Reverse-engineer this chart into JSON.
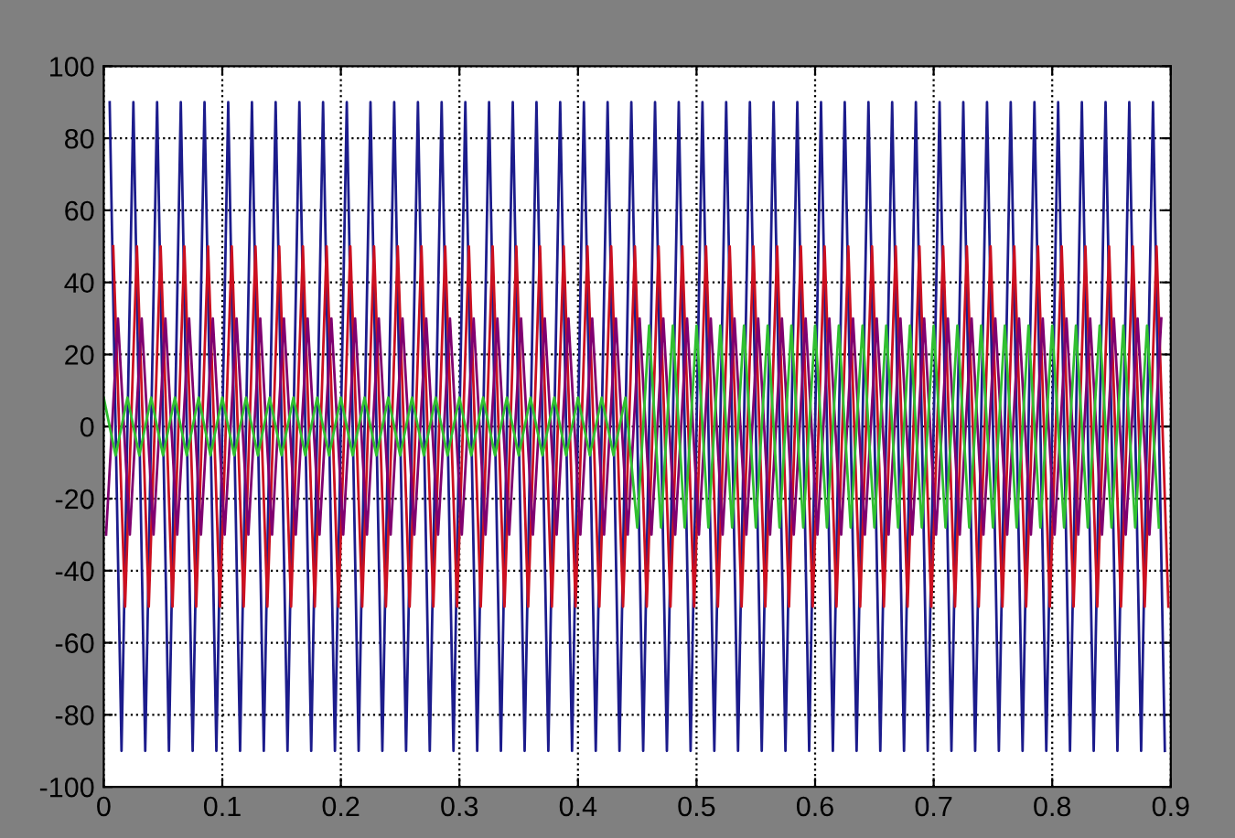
{
  "chart_data": {
    "type": "line",
    "xlim": [
      0,
      0.9
    ],
    "ylim": [
      -100,
      100
    ],
    "xticks": [
      {
        "value": 0,
        "label": "0"
      },
      0.1,
      0.2,
      0.3,
      0.4,
      0.5,
      0.6,
      0.7,
      0.8,
      0.9
    ],
    "yticks": [
      -100,
      -80,
      -60,
      -40,
      -20,
      0,
      20,
      40,
      60,
      80,
      100
    ],
    "grid": true,
    "marker": "none",
    "line_style": "solid",
    "series": [
      {
        "color": "#1c1c8c",
        "x": [
          0.005,
          0.015,
          0.025,
          0.035,
          0.045,
          0.055,
          0.065,
          0.075,
          0.085,
          0.095,
          0.105,
          0.115,
          0.125,
          0.135,
          0.145,
          0.155,
          0.165,
          0.175,
          0.185,
          0.195,
          0.205,
          0.215,
          0.225,
          0.235,
          0.245,
          0.255,
          0.265,
          0.275,
          0.285,
          0.295,
          0.305,
          0.315,
          0.325,
          0.335,
          0.345,
          0.355,
          0.365,
          0.375,
          0.385,
          0.395,
          0.405,
          0.415,
          0.425,
          0.435,
          0.445,
          0.455,
          0.465,
          0.475,
          0.485,
          0.495,
          0.505,
          0.515,
          0.525,
          0.535,
          0.545,
          0.555,
          0.565,
          0.575,
          0.585,
          0.595,
          0.605,
          0.615,
          0.625,
          0.635,
          0.645,
          0.655,
          0.665,
          0.675,
          0.685,
          0.695,
          0.705,
          0.715,
          0.725,
          0.735,
          0.745,
          0.755,
          0.765,
          0.775,
          0.785,
          0.795,
          0.805,
          0.815,
          0.825,
          0.835,
          0.845,
          0.855,
          0.865,
          0.875,
          0.885,
          0.895
        ],
        "values": [
          90,
          -90,
          90,
          -90,
          90,
          -90,
          90,
          -90,
          90,
          -90,
          90,
          -90,
          90,
          -90,
          90,
          -90,
          90,
          -90,
          90,
          -90,
          90,
          -90,
          90,
          -90,
          90,
          -90,
          90,
          -90,
          90,
          -90,
          90,
          -90,
          90,
          -90,
          90,
          -90,
          90,
          -90,
          90,
          -90,
          90,
          -90,
          90,
          -90,
          90,
          -90,
          90,
          -90,
          90,
          -90,
          90,
          -90,
          90,
          -90,
          90,
          -90,
          90,
          -90,
          90,
          -90,
          90,
          -90,
          90,
          -90,
          90,
          -90,
          90,
          -90,
          90,
          -90,
          90,
          -90,
          90,
          -90,
          90,
          -90,
          90,
          -90,
          90,
          -90,
          90,
          -90,
          90,
          -90,
          90,
          -90,
          90,
          -90,
          90,
          -90
        ]
      },
      {
        "color": "#cc1020",
        "x": [
          0.008,
          0.018,
          0.028,
          0.038,
          0.048,
          0.058,
          0.068,
          0.078,
          0.088,
          0.098,
          0.108,
          0.118,
          0.128,
          0.138,
          0.148,
          0.158,
          0.168,
          0.178,
          0.188,
          0.198,
          0.208,
          0.218,
          0.228,
          0.238,
          0.248,
          0.258,
          0.268,
          0.278,
          0.288,
          0.298,
          0.308,
          0.318,
          0.328,
          0.338,
          0.348,
          0.358,
          0.368,
          0.378,
          0.388,
          0.398,
          0.408,
          0.418,
          0.428,
          0.438,
          0.448,
          0.458,
          0.468,
          0.478,
          0.488,
          0.498,
          0.508,
          0.518,
          0.528,
          0.538,
          0.548,
          0.558,
          0.568,
          0.578,
          0.588,
          0.598,
          0.608,
          0.618,
          0.628,
          0.638,
          0.648,
          0.658,
          0.668,
          0.678,
          0.688,
          0.698,
          0.708,
          0.718,
          0.728,
          0.738,
          0.748,
          0.758,
          0.768,
          0.778,
          0.788,
          0.798,
          0.808,
          0.818,
          0.828,
          0.838,
          0.848,
          0.858,
          0.868,
          0.878,
          0.888,
          0.898
        ],
        "values": [
          50,
          -50,
          50,
          -50,
          50,
          -50,
          50,
          -50,
          50,
          -50,
          50,
          -50,
          50,
          -50,
          50,
          -50,
          50,
          -50,
          50,
          -50,
          50,
          -50,
          50,
          -50,
          50,
          -50,
          50,
          -50,
          50,
          -50,
          50,
          -50,
          50,
          -50,
          50,
          -50,
          50,
          -50,
          50,
          -50,
          50,
          -50,
          50,
          -50,
          50,
          -50,
          50,
          -50,
          50,
          -50,
          50,
          -50,
          50,
          -50,
          50,
          -50,
          50,
          -50,
          50,
          -50,
          50,
          -50,
          50,
          -50,
          50,
          -50,
          50,
          -50,
          50,
          -50,
          50,
          -50,
          50,
          -50,
          50,
          -50,
          50,
          -50,
          50,
          -50,
          50,
          -50,
          50,
          -50,
          50,
          -50,
          50,
          -50,
          50,
          -50
        ]
      },
      {
        "color": "#800070",
        "x": [
          0.002,
          0.012,
          0.022,
          0.032,
          0.042,
          0.052,
          0.062,
          0.072,
          0.082,
          0.092,
          0.102,
          0.112,
          0.122,
          0.132,
          0.142,
          0.152,
          0.162,
          0.172,
          0.182,
          0.192,
          0.202,
          0.212,
          0.222,
          0.232,
          0.242,
          0.252,
          0.262,
          0.272,
          0.282,
          0.292,
          0.302,
          0.312,
          0.322,
          0.332,
          0.342,
          0.352,
          0.362,
          0.372,
          0.382,
          0.392,
          0.402,
          0.412,
          0.422,
          0.432,
          0.442,
          0.452,
          0.462,
          0.472,
          0.482,
          0.492,
          0.502,
          0.512,
          0.522,
          0.532,
          0.542,
          0.552,
          0.562,
          0.572,
          0.582,
          0.592,
          0.602,
          0.612,
          0.622,
          0.632,
          0.642,
          0.652,
          0.662,
          0.672,
          0.682,
          0.692,
          0.702,
          0.712,
          0.722,
          0.732,
          0.742,
          0.752,
          0.762,
          0.772,
          0.782,
          0.792,
          0.802,
          0.812,
          0.822,
          0.832,
          0.842,
          0.852,
          0.862,
          0.872,
          0.882,
          0.892
        ],
        "values": [
          -30,
          30,
          -30,
          30,
          -30,
          30,
          -30,
          30,
          -30,
          30,
          -30,
          30,
          -30,
          30,
          -30,
          30,
          -30,
          30,
          -30,
          30,
          -30,
          30,
          -30,
          30,
          -30,
          30,
          -30,
          30,
          -30,
          30,
          -30,
          30,
          -30,
          30,
          -30,
          30,
          -30,
          30,
          -30,
          30,
          -30,
          30,
          -30,
          30,
          -30,
          30,
          -30,
          30,
          -30,
          30,
          -30,
          30,
          -30,
          30,
          -30,
          30,
          -30,
          30,
          -30,
          30,
          -30,
          30,
          -30,
          30,
          -30,
          30,
          -30,
          30,
          -30,
          30,
          -30,
          30,
          -30,
          30,
          -30,
          30,
          -30,
          30,
          -30,
          30,
          -30,
          30,
          -30,
          30,
          -30,
          30,
          -30,
          30,
          -30,
          30
        ]
      },
      {
        "color": "#30c030",
        "x": [
          0.0,
          0.01,
          0.02,
          0.03,
          0.04,
          0.05,
          0.06,
          0.07,
          0.08,
          0.09,
          0.1,
          0.11,
          0.12,
          0.13,
          0.14,
          0.15,
          0.16,
          0.17,
          0.18,
          0.19,
          0.2,
          0.21,
          0.22,
          0.23,
          0.24,
          0.25,
          0.26,
          0.27,
          0.28,
          0.29,
          0.3,
          0.31,
          0.32,
          0.33,
          0.34,
          0.35,
          0.36,
          0.37,
          0.38,
          0.39,
          0.4,
          0.41,
          0.42,
          0.43,
          0.44,
          0.45,
          0.46,
          0.47,
          0.48,
          0.49,
          0.5,
          0.51,
          0.52,
          0.53,
          0.54,
          0.55,
          0.56,
          0.57,
          0.58,
          0.59,
          0.6,
          0.61,
          0.62,
          0.63,
          0.64,
          0.65,
          0.66,
          0.67,
          0.68,
          0.69,
          0.7,
          0.71,
          0.72,
          0.73,
          0.74,
          0.75,
          0.76,
          0.77,
          0.78,
          0.79,
          0.8,
          0.81,
          0.82,
          0.83,
          0.84,
          0.85,
          0.86,
          0.87,
          0.88,
          0.89
        ],
        "values": [
          8,
          -8,
          8,
          -8,
          8,
          -8,
          8,
          -8,
          8,
          -8,
          8,
          -8,
          8,
          -8,
          8,
          -8,
          8,
          -8,
          8,
          -8,
          8,
          -8,
          8,
          -8,
          8,
          -8,
          8,
          -8,
          8,
          -8,
          8,
          -8,
          8,
          -8,
          8,
          -8,
          8,
          -8,
          8,
          -8,
          8,
          -8,
          8,
          -8,
          8,
          -28,
          28,
          -28,
          28,
          -28,
          28,
          -28,
          28,
          -28,
          28,
          -28,
          28,
          -28,
          28,
          -28,
          28,
          -28,
          28,
          -28,
          28,
          -28,
          28,
          -28,
          28,
          -28,
          28,
          -28,
          28,
          -28,
          28,
          -28,
          28,
          -28,
          28,
          -28,
          28,
          -28,
          28,
          -28,
          28,
          -28,
          28,
          -28,
          28,
          -28
        ]
      }
    ]
  }
}
